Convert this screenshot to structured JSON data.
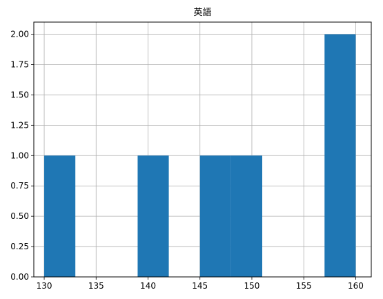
{
  "chart_data": {
    "type": "bar",
    "subtype": "histogram",
    "title": "英語",
    "xlabel": "",
    "ylabel": "",
    "bins": [
      {
        "x0": 130,
        "x1": 133,
        "count": 1
      },
      {
        "x0": 133,
        "x1": 136,
        "count": 0
      },
      {
        "x0": 136,
        "x1": 139,
        "count": 0
      },
      {
        "x0": 139,
        "x1": 142,
        "count": 1
      },
      {
        "x0": 142,
        "x1": 145,
        "count": 0
      },
      {
        "x0": 145,
        "x1": 148,
        "count": 1
      },
      {
        "x0": 148,
        "x1": 151,
        "count": 1
      },
      {
        "x0": 151,
        "x1": 154,
        "count": 0
      },
      {
        "x0": 154,
        "x1": 157,
        "count": 0
      },
      {
        "x0": 157,
        "x1": 160,
        "count": 2
      }
    ],
    "xlim": [
      129,
      161.5
    ],
    "ylim": [
      0,
      2.1
    ],
    "xticks": [
      "130",
      "135",
      "140",
      "145",
      "150",
      "155",
      "160"
    ],
    "yticks": [
      "0.00",
      "0.25",
      "0.50",
      "0.75",
      "1.00",
      "1.25",
      "1.50",
      "1.75",
      "2.00"
    ],
    "grid": true,
    "bar_color": "#1f77b4",
    "grid_color": "#b0b0b0"
  }
}
